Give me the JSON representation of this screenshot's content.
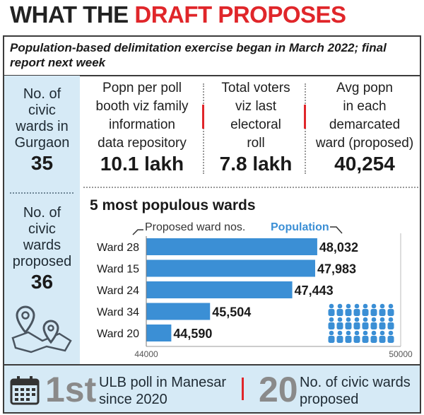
{
  "title": {
    "part1": "WHAT THE ",
    "part2": "DRAFT PROPOSES"
  },
  "subtitle": "Population-based delimitation exercise began in March 2022; final report next week",
  "left_stats": [
    {
      "label_lines": [
        "No. of",
        "civic",
        "wards in",
        "Gurgaon"
      ],
      "value": "35"
    },
    {
      "label_lines": [
        "No. of",
        "civic",
        "wards",
        "proposed"
      ],
      "value": "36"
    }
  ],
  "top_stats": [
    {
      "label_lines": [
        "Popn per poll",
        "booth viz family",
        "information",
        "data repository"
      ],
      "value": "10.1 lakh"
    },
    {
      "label_lines": [
        "Total voters",
        "viz last",
        "electoral",
        "roll"
      ],
      "value": "7.8 lakh"
    },
    {
      "label_lines": [
        "Avg popn",
        "in each",
        "demarcated",
        "ward (proposed)"
      ],
      "value": "40,254"
    }
  ],
  "chart_data": {
    "type": "bar",
    "orientation": "horizontal",
    "title": "5 most populous wards",
    "category_label": "Proposed ward nos.",
    "series_name": "Population",
    "categories": [
      "Ward 28",
      "Ward 15",
      "Ward 24",
      "Ward 34",
      "Ward 20"
    ],
    "values": [
      48032,
      47983,
      47443,
      45504,
      44590
    ],
    "value_labels": [
      "48,032",
      "47,983",
      "47,443",
      "45,504",
      "44,590"
    ],
    "xlim": [
      44000,
      50000
    ],
    "x_tick_labels": [
      "44000",
      "50000"
    ],
    "bar_color": "#3b8fd5",
    "grid": false,
    "legend": "top"
  },
  "bottom": {
    "item1": {
      "big": "1st",
      "lines": [
        "ULB poll in Manesar",
        "since 2020"
      ]
    },
    "item2": {
      "big": "20",
      "lines": [
        "No. of civic wards",
        "proposed"
      ]
    }
  },
  "icons": [
    "map-pin-icon",
    "people-group-icon",
    "calendar-icon"
  ],
  "colors": {
    "accent_red": "#e0262a",
    "panel_blue": "#d6eaf6",
    "bar_blue": "#3b8fd5"
  }
}
